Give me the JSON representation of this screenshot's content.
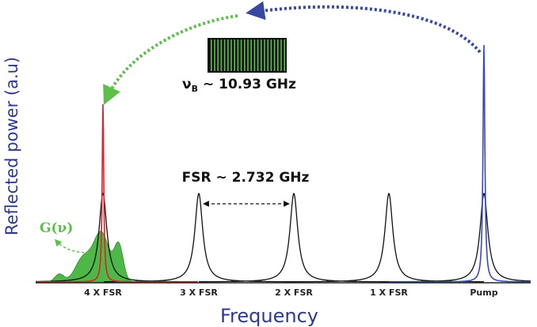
{
  "axes": {
    "y_label": "Reflected power (a.u)",
    "x_label": "Frequency"
  },
  "peaks": [
    "4 X FSR",
    "3 X FSR",
    "2 X FSR",
    "1 X FSR",
    "Pump"
  ],
  "annotations": {
    "fsr": "FSR ~ 2.732 GHz",
    "brillouin": {
      "symbol": "ν",
      "subscript": "B",
      "value": "~ 10.93 GHz"
    },
    "gain": "G(ν)"
  }
}
